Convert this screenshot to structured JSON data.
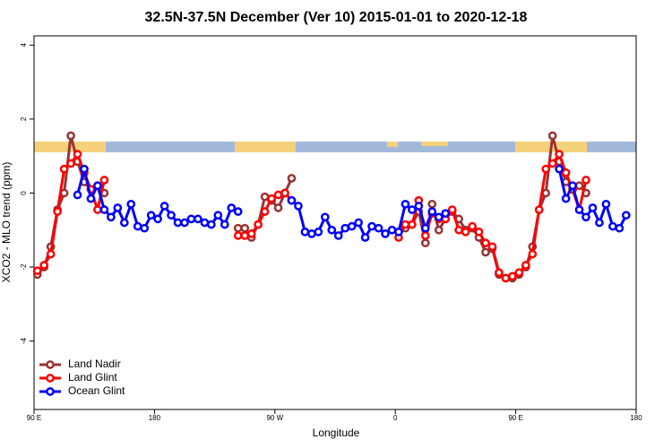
{
  "chart_data": {
    "type": "line",
    "title": "32.5N-37.5N December (Ver 10)   2015-01-01 to 2020-12-18",
    "xlabel": "Longitude",
    "ylabel": "XCO2 - MLO trend (ppm)",
    "xlim": [
      90,
      540
    ],
    "ylim": [
      -5.85,
      4.25
    ],
    "xticks": [
      {
        "value": 90,
        "label": "90 E"
      },
      180,
      {
        "value": 270,
        "label": "90 W"
      },
      {
        "value": 360,
        "label": "0"
      },
      {
        "value": 450,
        "label": "90 E"
      },
      {
        "value": 540,
        "label": "180"
      }
    ],
    "yticks": [
      4,
      2,
      0,
      -2,
      -4
    ],
    "legend": "bottom-left",
    "x": [
      92.5,
      97.5,
      102.5,
      107.5,
      112.5,
      117.5,
      122.5,
      127.5,
      132.5,
      137.5,
      142.5,
      147.5,
      152.5,
      157.5,
      162.5,
      167.5,
      172.5,
      177.5,
      182.5,
      187.5,
      192.5,
      197.5,
      202.5,
      207.5,
      212.5,
      217.5,
      222.5,
      227.5,
      232.5,
      237.5,
      242.5,
      247.5,
      252.5,
      257.5,
      262.5,
      267.5,
      272.5,
      277.5,
      282.5,
      287.5,
      292.5,
      297.5,
      302.5,
      307.5,
      312.5,
      317.5,
      322.5,
      327.5,
      332.5,
      337.5,
      342.5,
      347.5,
      352.5,
      357.5,
      362.5,
      367.5,
      372.5,
      377.5,
      382.5,
      387.5,
      392.5,
      397.5,
      402.5,
      407.5,
      412.5,
      417.5,
      422.5,
      427.5,
      432.5,
      437.5,
      442.5,
      447.5,
      452.5,
      457.5,
      462.5,
      467.5,
      472.5,
      477.5,
      482.5,
      487.5,
      492.5,
      497.5,
      502.5,
      507.5,
      512.5,
      517.5,
      522.5,
      527.5,
      532.5
    ],
    "series": [
      {
        "name": "Land Nadir",
        "color": "#993333",
        "values": [
          -2.2,
          -2.0,
          -1.45,
          -0.45,
          0.0,
          1.55,
          0.85,
          0.3,
          0.1,
          0.2,
          0.0,
          null,
          null,
          null,
          null,
          null,
          null,
          null,
          null,
          null,
          null,
          null,
          null,
          null,
          null,
          null,
          null,
          null,
          null,
          null,
          -0.95,
          -0.95,
          -1.2,
          -0.85,
          -0.1,
          -0.2,
          -0.4,
          0.0,
          0.4,
          null,
          null,
          null,
          null,
          null,
          null,
          null,
          null,
          null,
          null,
          null,
          null,
          null,
          null,
          null,
          -1.05,
          -0.95,
          -0.85,
          -0.5,
          -1.35,
          -0.3,
          -1.0,
          -0.7,
          -0.5,
          -0.7,
          -1.0,
          -0.95,
          -1.2,
          -1.6,
          -1.5,
          -2.2,
          -2.3,
          -2.3,
          -2.2,
          -2.0,
          -1.45,
          -0.45,
          0.0,
          1.55,
          0.85,
          0.3,
          0.1,
          0.2,
          0.0,
          null,
          null,
          null,
          null,
          null,
          null
        ]
      },
      {
        "name": "Land Glint",
        "color": "#ff0000",
        "values": [
          -2.1,
          -1.95,
          -1.65,
          -0.5,
          0.65,
          0.8,
          1.05,
          0.55,
          0.1,
          -0.45,
          0.35,
          null,
          null,
          null,
          null,
          null,
          null,
          null,
          null,
          null,
          null,
          null,
          null,
          null,
          null,
          null,
          null,
          null,
          null,
          null,
          -1.15,
          -1.15,
          -1.1,
          -0.85,
          -0.5,
          -0.15,
          -0.05,
          0.0,
          -0.2,
          null,
          null,
          null,
          null,
          null,
          null,
          null,
          null,
          null,
          null,
          null,
          null,
          null,
          null,
          null,
          -1.2,
          -0.85,
          -0.85,
          -0.2,
          -1.15,
          -0.55,
          -0.7,
          -0.7,
          -0.45,
          -1.0,
          -1.05,
          -0.9,
          -1.05,
          -1.35,
          -1.45,
          -2.15,
          -2.3,
          -2.25,
          -2.15,
          -1.95,
          -1.65,
          -0.45,
          0.65,
          0.8,
          1.05,
          0.55,
          0.1,
          -0.45,
          0.35,
          null,
          null,
          null,
          null,
          null,
          null
        ]
      },
      {
        "name": "Ocean Glint",
        "color": "#0000ff",
        "values": [
          null,
          null,
          null,
          null,
          null,
          null,
          -0.05,
          0.65,
          -0.15,
          0.2,
          -0.45,
          -0.65,
          -0.4,
          -0.8,
          -0.3,
          -0.9,
          -0.95,
          -0.6,
          -0.7,
          -0.35,
          -0.6,
          -0.8,
          -0.8,
          -0.7,
          -0.7,
          -0.8,
          -0.85,
          -0.6,
          -0.85,
          -0.4,
          -0.5,
          null,
          null,
          null,
          null,
          null,
          null,
          null,
          -0.2,
          -0.35,
          -1.05,
          -1.1,
          -1.05,
          -0.65,
          -1.0,
          -1.15,
          -0.95,
          -0.9,
          -0.8,
          -1.2,
          -0.9,
          -0.95,
          -1.1,
          -1.0,
          -1.05,
          -0.3,
          -0.45,
          -0.35,
          -0.95,
          -0.5,
          -0.65,
          -0.55,
          null,
          null,
          null,
          null,
          null,
          null,
          null,
          null,
          null,
          null,
          null,
          null,
          null,
          null,
          null,
          null,
          0.65,
          -0.15,
          0.2,
          -0.45,
          -0.65,
          -0.4,
          -0.8,
          -0.3,
          -0.9,
          -0.95,
          -0.6
        ]
      }
    ]
  }
}
